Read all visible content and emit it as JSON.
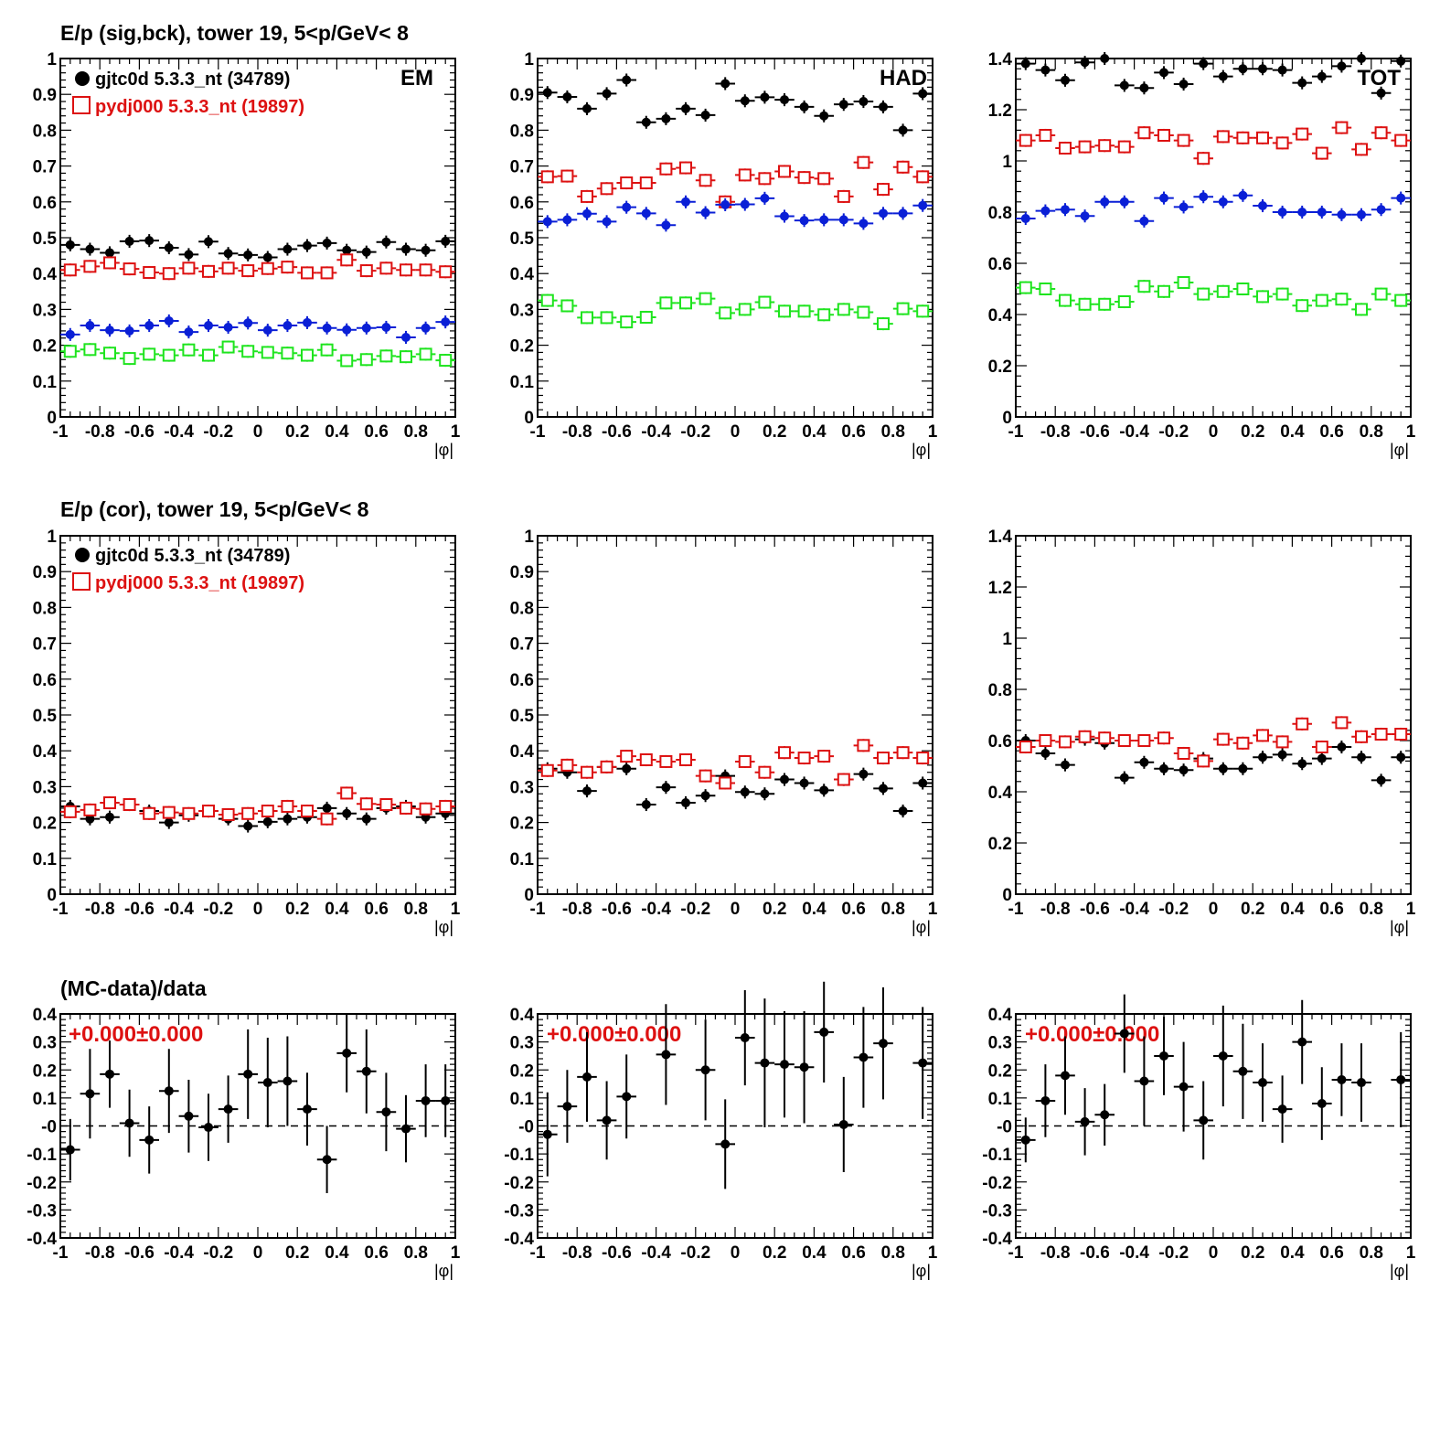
{
  "colors": {
    "data": "#000000",
    "mc": "#dd1111",
    "blue": "#0a1fd6",
    "green": "#1ee41e"
  },
  "row_titles": [
    "E/p (sig,bck), tower 19,  5<p/GeV< 8",
    "E/p (cor), tower 19,  5<p/GeV< 8",
    "(MC-data)/data"
  ],
  "legend": {
    "data": "gjtc0d 5.3.3_nt (34789)",
    "mc": "pydj000 5.3.3_nt (19897)"
  },
  "panel_tags": [
    "EM",
    "HAD",
    "TOT"
  ],
  "ratio_text": "+0.000±0.000",
  "chart_data": [
    {
      "type": "scatter",
      "row": 0,
      "col": 0,
      "tag": "EM",
      "xlabel": "|φ|",
      "xlim": [
        -1,
        1
      ],
      "ylim": [
        0,
        1
      ],
      "yticks": [
        "0",
        "0.1",
        "0.2",
        "0.3",
        "0.4",
        "0.5",
        "0.6",
        "0.7",
        "0.8",
        "0.9",
        "1"
      ],
      "x": [
        -0.95,
        -0.85,
        -0.75,
        -0.65,
        -0.55,
        -0.45,
        -0.35,
        -0.25,
        -0.15,
        -0.05,
        0.05,
        0.15,
        0.25,
        0.35,
        0.45,
        0.55,
        0.65,
        0.75,
        0.85,
        0.95
      ],
      "series": [
        {
          "name": "gjtc0d 5.3.3_nt (34789)",
          "color": "black",
          "marker": "filled",
          "values": [
            0.48,
            0.468,
            0.458,
            0.49,
            0.492,
            0.472,
            0.453,
            0.489,
            0.456,
            0.452,
            0.445,
            0.468,
            0.478,
            0.485,
            0.465,
            0.46,
            0.488,
            0.468,
            0.465,
            0.49
          ]
        },
        {
          "name": "pydj000 5.3.3_nt (19897)",
          "color": "red",
          "marker": "open",
          "values": [
            0.41,
            0.42,
            0.43,
            0.413,
            0.403,
            0.4,
            0.415,
            0.406,
            0.415,
            0.408,
            0.414,
            0.418,
            0.402,
            0.402,
            0.438,
            0.408,
            0.415,
            0.41,
            0.41,
            0.405
          ]
        },
        {
          "color": "blue",
          "marker": "filled",
          "values": [
            0.23,
            0.255,
            0.242,
            0.24,
            0.255,
            0.268,
            0.237,
            0.255,
            0.25,
            0.262,
            0.242,
            0.255,
            0.263,
            0.248,
            0.243,
            0.248,
            0.25,
            0.222,
            0.248,
            0.265
          ]
        },
        {
          "color": "green",
          "marker": "open",
          "values": [
            0.183,
            0.188,
            0.178,
            0.163,
            0.175,
            0.172,
            0.187,
            0.172,
            0.195,
            0.183,
            0.18,
            0.178,
            0.172,
            0.187,
            0.157,
            0.16,
            0.17,
            0.168,
            0.175,
            0.158
          ]
        }
      ]
    },
    {
      "type": "scatter",
      "row": 0,
      "col": 1,
      "tag": "HAD",
      "xlabel": "|φ|",
      "xlim": [
        -1,
        1
      ],
      "ylim": [
        0,
        1
      ],
      "yticks": [
        "0",
        "0.1",
        "0.2",
        "0.3",
        "0.4",
        "0.5",
        "0.6",
        "0.7",
        "0.8",
        "0.9",
        "1"
      ],
      "x": [
        -0.95,
        -0.85,
        -0.75,
        -0.65,
        -0.55,
        -0.45,
        -0.35,
        -0.25,
        -0.15,
        -0.05,
        0.05,
        0.15,
        0.25,
        0.35,
        0.45,
        0.55,
        0.65,
        0.75,
        0.85,
        0.95
      ],
      "series": [
        {
          "color": "black",
          "marker": "filled",
          "values": [
            0.905,
            0.893,
            0.86,
            0.902,
            0.94,
            0.822,
            0.832,
            0.86,
            0.842,
            0.93,
            0.882,
            0.892,
            0.885,
            0.865,
            0.84,
            0.872,
            0.88,
            0.865,
            0.8,
            0.902
          ]
        },
        {
          "color": "red",
          "marker": "open",
          "values": [
            0.67,
            0.672,
            0.615,
            0.637,
            0.653,
            0.653,
            0.692,
            0.695,
            0.66,
            0.6,
            0.675,
            0.665,
            0.685,
            0.668,
            0.665,
            0.615,
            0.71,
            0.635,
            0.697,
            0.67
          ]
        },
        {
          "color": "blue",
          "marker": "filled",
          "values": [
            0.545,
            0.55,
            0.567,
            0.545,
            0.585,
            0.568,
            0.535,
            0.6,
            0.57,
            0.592,
            0.593,
            0.61,
            0.56,
            0.548,
            0.55,
            0.55,
            0.54,
            0.568,
            0.568,
            0.59
          ]
        },
        {
          "color": "green",
          "marker": "open",
          "values": [
            0.325,
            0.31,
            0.277,
            0.277,
            0.265,
            0.278,
            0.318,
            0.318,
            0.33,
            0.29,
            0.3,
            0.32,
            0.295,
            0.295,
            0.285,
            0.3,
            0.292,
            0.26,
            0.302,
            0.295
          ]
        }
      ]
    },
    {
      "type": "scatter",
      "row": 0,
      "col": 2,
      "tag": "TOT",
      "xlabel": "|φ|",
      "xlim": [
        -1,
        1
      ],
      "ylim": [
        0,
        1.4
      ],
      "yticks": [
        "0",
        "0.2",
        "0.4",
        "0.6",
        "0.8",
        "1",
        "1.2",
        "1.4"
      ],
      "x": [
        -0.95,
        -0.85,
        -0.75,
        -0.65,
        -0.55,
        -0.45,
        -0.35,
        -0.25,
        -0.15,
        -0.05,
        0.05,
        0.15,
        0.25,
        0.35,
        0.45,
        0.55,
        0.65,
        0.75,
        0.85,
        0.95
      ],
      "series": [
        {
          "color": "black",
          "marker": "filled",
          "values": [
            1.38,
            1.355,
            1.315,
            1.385,
            1.4,
            1.295,
            1.285,
            1.345,
            1.3,
            1.38,
            1.33,
            1.36,
            1.36,
            1.355,
            1.305,
            1.33,
            1.37,
            1.4,
            1.265,
            1.39
          ]
        },
        {
          "color": "red",
          "marker": "open",
          "values": [
            1.08,
            1.1,
            1.05,
            1.055,
            1.06,
            1.055,
            1.11,
            1.1,
            1.08,
            1.01,
            1.095,
            1.09,
            1.09,
            1.07,
            1.105,
            1.03,
            1.13,
            1.045,
            1.11,
            1.08
          ]
        },
        {
          "color": "blue",
          "marker": "filled",
          "values": [
            0.775,
            0.805,
            0.81,
            0.785,
            0.84,
            0.84,
            0.765,
            0.855,
            0.82,
            0.86,
            0.84,
            0.865,
            0.825,
            0.8,
            0.8,
            0.8,
            0.79,
            0.79,
            0.81,
            0.855
          ]
        },
        {
          "color": "green",
          "marker": "open",
          "values": [
            0.505,
            0.5,
            0.455,
            0.44,
            0.44,
            0.45,
            0.51,
            0.49,
            0.525,
            0.48,
            0.49,
            0.5,
            0.47,
            0.48,
            0.435,
            0.455,
            0.46,
            0.42,
            0.48,
            0.455
          ]
        }
      ]
    },
    {
      "type": "scatter",
      "row": 1,
      "col": 0,
      "xlabel": "|φ|",
      "xlim": [
        -1,
        1
      ],
      "ylim": [
        0,
        1
      ],
      "yticks": [
        "0",
        "0.1",
        "0.2",
        "0.3",
        "0.4",
        "0.5",
        "0.6",
        "0.7",
        "0.8",
        "0.9",
        "1"
      ],
      "x": [
        -0.95,
        -0.85,
        -0.75,
        -0.65,
        -0.55,
        -0.45,
        -0.35,
        -0.25,
        -0.15,
        -0.05,
        0.05,
        0.15,
        0.25,
        0.35,
        0.45,
        0.55,
        0.65,
        0.75,
        0.85,
        0.95
      ],
      "series": [
        {
          "name": "gjtc0d 5.3.3_nt (34789)",
          "color": "black",
          "marker": "filled",
          "values": [
            0.245,
            0.21,
            0.215,
            0.25,
            0.232,
            0.2,
            0.22,
            0.232,
            0.21,
            0.19,
            0.202,
            0.21,
            0.215,
            0.24,
            0.225,
            0.21,
            0.24,
            0.245,
            0.215,
            0.225
          ]
        },
        {
          "name": "pydj000 5.3.3_nt (19897)",
          "color": "red",
          "marker": "open",
          "values": [
            0.23,
            0.235,
            0.255,
            0.25,
            0.225,
            0.228,
            0.225,
            0.232,
            0.222,
            0.225,
            0.232,
            0.245,
            0.232,
            0.21,
            0.282,
            0.252,
            0.25,
            0.24,
            0.238,
            0.245
          ]
        }
      ]
    },
    {
      "type": "scatter",
      "row": 1,
      "col": 1,
      "xlabel": "|φ|",
      "xlim": [
        -1,
        1
      ],
      "ylim": [
        0,
        1
      ],
      "yticks": [
        "0",
        "0.1",
        "0.2",
        "0.3",
        "0.4",
        "0.5",
        "0.6",
        "0.7",
        "0.8",
        "0.9",
        "1"
      ],
      "x": [
        -0.95,
        -0.85,
        -0.75,
        -0.65,
        -0.55,
        -0.45,
        -0.35,
        -0.25,
        -0.15,
        -0.05,
        0.05,
        0.15,
        0.25,
        0.35,
        0.45,
        0.55,
        0.65,
        0.75,
        0.85,
        0.95
      ],
      "series": [
        {
          "color": "black",
          "marker": "filled",
          "values": [
            0.35,
            0.34,
            0.288,
            0.355,
            0.35,
            0.25,
            0.298,
            0.255,
            0.275,
            0.33,
            0.285,
            0.28,
            0.32,
            0.31,
            0.29,
            0.32,
            0.335,
            0.295,
            0.232,
            0.31
          ]
        },
        {
          "color": "red",
          "marker": "open",
          "values": [
            0.345,
            0.36,
            0.34,
            0.355,
            0.385,
            0.375,
            0.37,
            0.375,
            0.33,
            0.31,
            0.37,
            0.34,
            0.395,
            0.38,
            0.385,
            0.32,
            0.415,
            0.38,
            0.395,
            0.38
          ]
        }
      ]
    },
    {
      "type": "scatter",
      "row": 1,
      "col": 2,
      "xlabel": "|φ|",
      "xlim": [
        -1,
        1
      ],
      "ylim": [
        0,
        1.4
      ],
      "yticks": [
        "0",
        "0.2",
        "0.4",
        "0.6",
        "0.8",
        "1",
        "1.2",
        "1.4"
      ],
      "x": [
        -0.95,
        -0.85,
        -0.75,
        -0.65,
        -0.55,
        -0.45,
        -0.35,
        -0.25,
        -0.15,
        -0.05,
        0.05,
        0.15,
        0.25,
        0.35,
        0.45,
        0.55,
        0.65,
        0.75,
        0.85,
        0.95
      ],
      "series": [
        {
          "color": "black",
          "marker": "filled",
          "values": [
            0.6,
            0.55,
            0.505,
            0.605,
            0.59,
            0.455,
            0.515,
            0.49,
            0.485,
            0.53,
            0.49,
            0.49,
            0.535,
            0.545,
            0.51,
            0.53,
            0.575,
            0.535,
            0.445,
            0.535
          ]
        },
        {
          "color": "red",
          "marker": "open",
          "values": [
            0.575,
            0.6,
            0.595,
            0.615,
            0.61,
            0.6,
            0.6,
            0.61,
            0.55,
            0.52,
            0.605,
            0.59,
            0.62,
            0.595,
            0.665,
            0.575,
            0.67,
            0.615,
            0.625,
            0.625
          ]
        }
      ]
    },
    {
      "type": "scatter",
      "row": 2,
      "col": 0,
      "xlabel": "|φ|",
      "xlim": [
        -1,
        1
      ],
      "ylim": [
        -0.4,
        0.4
      ],
      "yticks": [
        "-0.4",
        "-0.3",
        "-0.2",
        "-0.1",
        "-0",
        "0.1",
        "0.2",
        "0.3",
        "0.4"
      ],
      "x": [
        -0.95,
        -0.85,
        -0.75,
        -0.65,
        -0.55,
        -0.45,
        -0.35,
        -0.25,
        -0.15,
        -0.05,
        0.05,
        0.15,
        0.25,
        0.35,
        0.45,
        0.55,
        0.65,
        0.75,
        0.85,
        0.95
      ],
      "series": [
        {
          "color": "black",
          "marker": "filled",
          "values": [
            -0.085,
            0.115,
            0.185,
            0.01,
            -0.05,
            0.125,
            0.035,
            -0.005,
            0.06,
            0.185,
            0.155,
            0.16,
            0.06,
            -0.12,
            0.26,
            0.195,
            0.05,
            -0.01,
            0.09,
            0.09
          ],
          "errors": [
            0.11,
            0.16,
            0.12,
            0.12,
            0.12,
            0.15,
            0.13,
            0.12,
            0.12,
            0.16,
            0.16,
            0.16,
            0.13,
            0.12,
            0.14,
            0.15,
            0.14,
            0.12,
            0.13,
            0.13
          ]
        }
      ]
    },
    {
      "type": "scatter",
      "row": 2,
      "col": 1,
      "xlabel": "|φ|",
      "xlim": [
        -1,
        1
      ],
      "ylim": [
        -0.4,
        0.4
      ],
      "yticks": [
        "-0.4",
        "-0.3",
        "-0.2",
        "-0.1",
        "-0",
        "0.1",
        "0.2",
        "0.3",
        "0.4"
      ],
      "x": [
        -0.95,
        -0.85,
        -0.75,
        -0.65,
        -0.55,
        -0.45,
        -0.35,
        -0.25,
        -0.15,
        -0.05,
        0.05,
        0.15,
        0.25,
        0.35,
        0.45,
        0.55,
        0.65,
        0.75,
        0.85,
        0.95
      ],
      "series": [
        {
          "color": "black",
          "marker": "filled",
          "values": [
            -0.03,
            0.07,
            0.175,
            0.02,
            0.105,
            null,
            0.255,
            null,
            0.2,
            -0.065,
            0.315,
            0.225,
            0.22,
            0.21,
            0.335,
            0.005,
            0.245,
            0.295,
            null,
            0.225
          ],
          "errors": [
            0.15,
            0.13,
            0.16,
            0.14,
            0.15,
            0,
            0.18,
            0,
            0.18,
            0.16,
            0.17,
            0.23,
            0.19,
            0.2,
            0.18,
            0.17,
            0.18,
            0.2,
            0,
            0.2
          ]
        }
      ]
    },
    {
      "type": "scatter",
      "row": 2,
      "col": 2,
      "xlabel": "|φ|",
      "xlim": [
        -1,
        1
      ],
      "ylim": [
        -0.4,
        0.4
      ],
      "yticks": [
        "-0.4",
        "-0.3",
        "-0.2",
        "-0.1",
        "-0",
        "0.1",
        "0.2",
        "0.3",
        "0.4"
      ],
      "x": [
        -0.95,
        -0.85,
        -0.75,
        -0.65,
        -0.55,
        -0.45,
        -0.35,
        -0.25,
        -0.15,
        -0.05,
        0.05,
        0.15,
        0.25,
        0.35,
        0.45,
        0.55,
        0.65,
        0.75,
        0.85,
        0.95
      ],
      "series": [
        {
          "color": "black",
          "marker": "filled",
          "values": [
            -0.05,
            0.09,
            0.18,
            0.015,
            0.04,
            0.33,
            0.16,
            0.25,
            0.14,
            0.02,
            0.25,
            0.195,
            0.155,
            0.06,
            0.3,
            0.08,
            0.165,
            0.155,
            null,
            0.165
          ],
          "errors": [
            0.08,
            0.13,
            0.14,
            0.12,
            0.11,
            0.14,
            0.16,
            0.14,
            0.16,
            0.14,
            0.18,
            0.17,
            0.14,
            0.12,
            0.15,
            0.13,
            0.13,
            0.14,
            0,
            0.17
          ]
        }
      ]
    }
  ]
}
